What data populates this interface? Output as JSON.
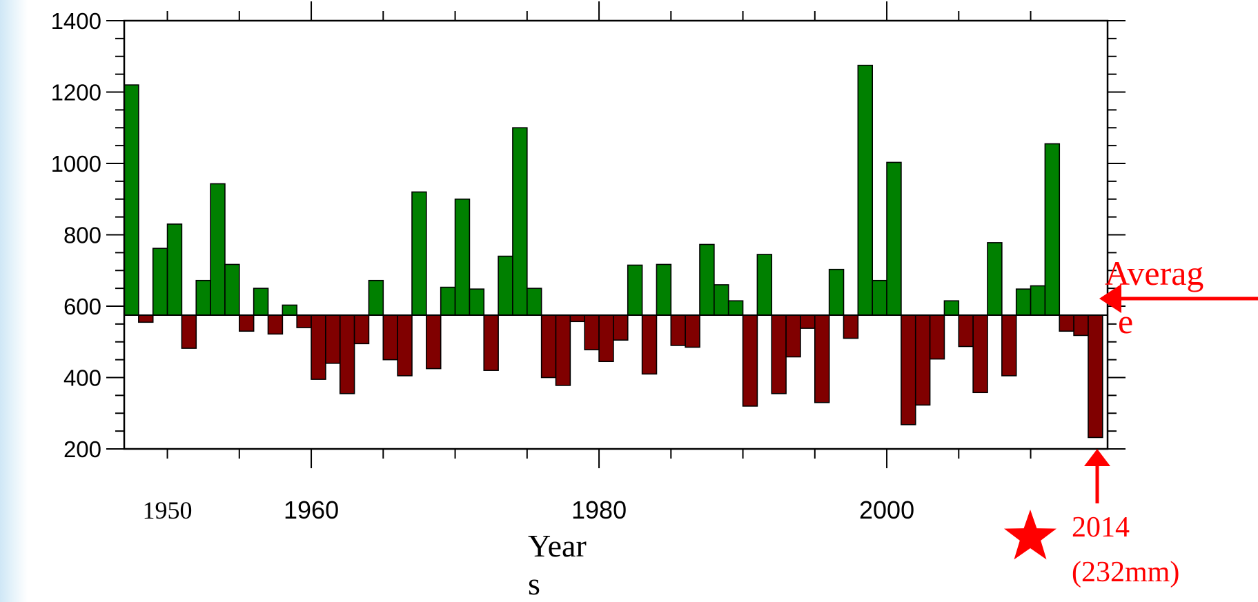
{
  "chart_data": {
    "type": "bar",
    "xlabel_line1": "Year",
    "xlabel_line2": "s",
    "baseline": 575,
    "ylim": [
      200,
      1400
    ],
    "yticks": [
      "1400",
      "1200",
      "1000",
      "800",
      "600",
      "400",
      "200"
    ],
    "xticks": [
      "1950",
      "1960",
      "1980",
      "2000"
    ],
    "x_start": 1947,
    "above_color": "#008000",
    "below_color": "#800000",
    "values": [
      1220,
      555,
      762,
      830,
      482,
      672,
      943,
      717,
      530,
      650,
      522,
      603,
      540,
      395,
      440,
      355,
      495,
      672,
      450,
      405,
      920,
      425,
      653,
      900,
      648,
      420,
      740,
      1100,
      650,
      400,
      378,
      557,
      478,
      445,
      505,
      715,
      410,
      717,
      490,
      485,
      773,
      660,
      615,
      320,
      745,
      355,
      458,
      538,
      330,
      703,
      510,
      1275,
      672,
      1003,
      268,
      323,
      452,
      615,
      487,
      358,
      778,
      405,
      648,
      657,
      1055,
      530,
      518,
      232
    ],
    "average_label": "Averag",
    "average_label_cont": "e",
    "highlight_year": "2014",
    "highlight_value": "(232mm)",
    "highlight_color": "#ff0000"
  }
}
